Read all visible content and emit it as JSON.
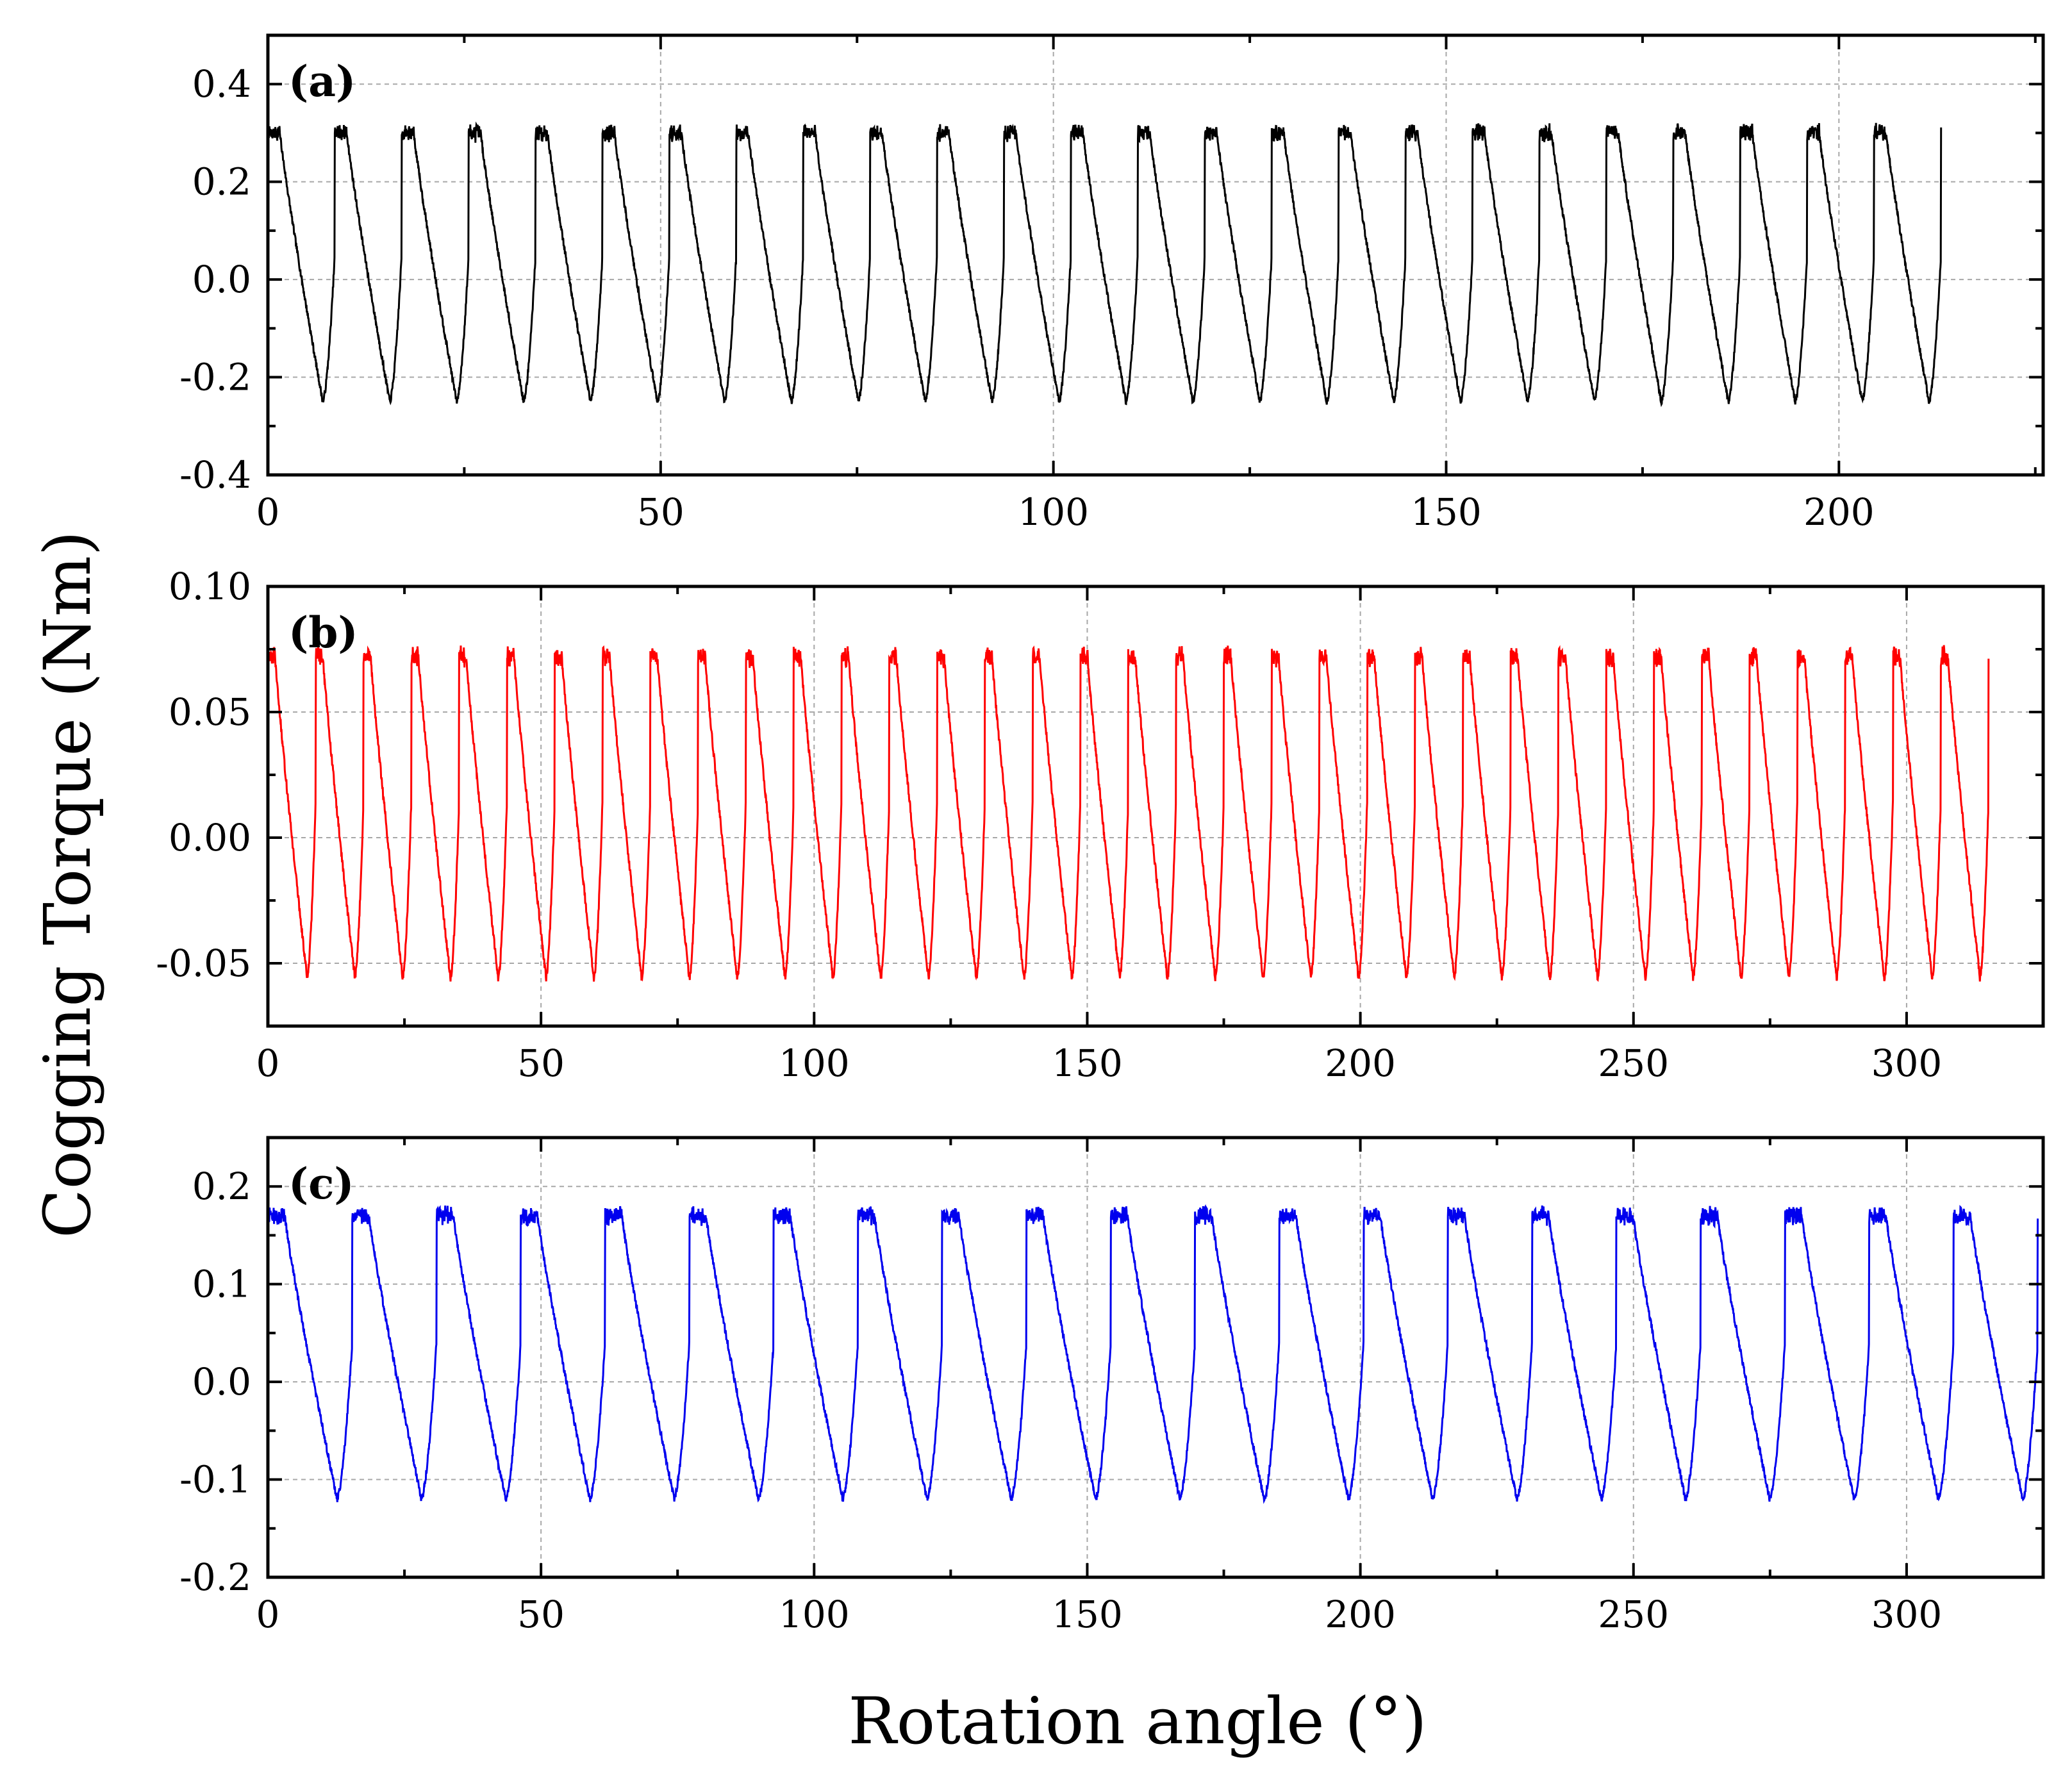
{
  "figure": {
    "xlabel": "Rotation angle (°)",
    "ylabel": "Cogging Torque (Nm)"
  },
  "chart_data": [
    {
      "type": "line",
      "panel_label": "(a)",
      "color": "#000000",
      "xlim": [
        0,
        226
      ],
      "ylim": [
        -0.4,
        0.5
      ],
      "xticks": [
        0,
        50,
        100,
        150,
        200
      ],
      "xtick_labels": [
        "0",
        "50",
        "100",
        "150",
        "200"
      ],
      "yticks": [
        -0.4,
        -0.2,
        0.0,
        0.2,
        0.4
      ],
      "ytick_labels": [
        "-0.4",
        "-0.2",
        "0.0",
        "0.2",
        "0.4"
      ],
      "grid": true,
      "series": [
        {
          "name": "(a)",
          "x_end": 213,
          "cycle_count": 25,
          "high_value": 0.3,
          "low_value": -0.25,
          "plateau_fraction": 0.18
        }
      ]
    },
    {
      "type": "line",
      "panel_label": "(b)",
      "color": "#ff0000",
      "xlim": [
        0,
        325
      ],
      "ylim": [
        -0.075,
        0.1
      ],
      "xticks": [
        0,
        50,
        100,
        150,
        200,
        250,
        300
      ],
      "xtick_labels": [
        "0",
        "50",
        "100",
        "150",
        "200",
        "250",
        "300"
      ],
      "yticks": [
        -0.05,
        0.0,
        0.05,
        0.1
      ],
      "ytick_labels": [
        "-0.05",
        "0.00",
        "0.05",
        "0.10"
      ],
      "grid": true,
      "series": [
        {
          "name": "(b)",
          "x_end": 315,
          "cycle_count": 36,
          "high_value": 0.072,
          "low_value": -0.056,
          "plateau_fraction": 0.15
        }
      ]
    },
    {
      "type": "line",
      "panel_label": "(c)",
      "color": "#0000ee",
      "xlim": [
        0,
        325
      ],
      "ylim": [
        -0.2,
        0.25
      ],
      "xticks": [
        0,
        50,
        100,
        150,
        200,
        250,
        300
      ],
      "xtick_labels": [
        "0",
        "50",
        "100",
        "150",
        "200",
        "250",
        "300"
      ],
      "yticks": [
        -0.2,
        -0.1,
        0.0,
        0.1,
        0.2
      ],
      "ytick_labels": [
        "-0.2",
        "-0.1",
        "0.0",
        "0.1",
        "0.2"
      ],
      "grid": true,
      "series": [
        {
          "name": "(c)",
          "x_end": 324,
          "cycle_count": 21,
          "high_value": 0.17,
          "low_value": -0.12,
          "plateau_fraction": 0.2
        }
      ]
    }
  ]
}
